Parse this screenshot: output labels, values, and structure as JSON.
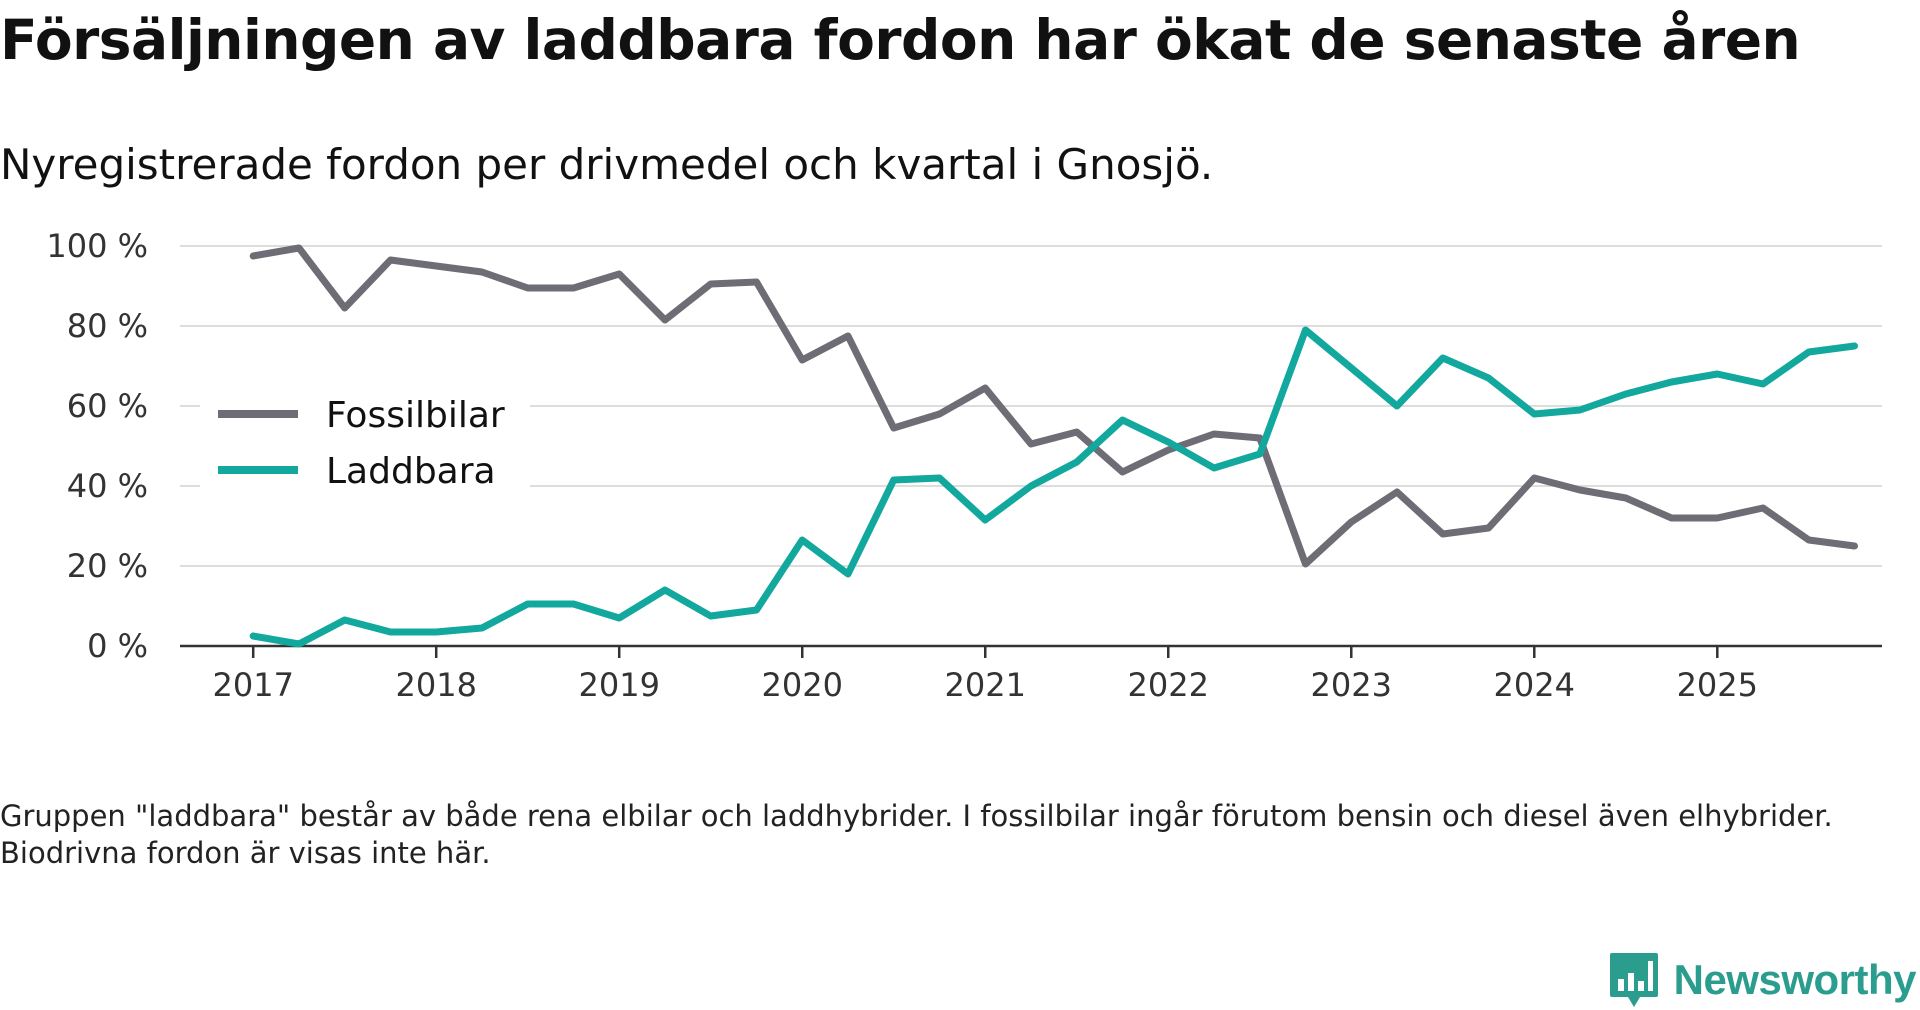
{
  "title": "Försäljningen av laddbara fordon har ökat de senaste åren",
  "subtitle": "Nyregistrerade fordon per drivmedel och kvartal i Gnosjö.",
  "footnote": "Gruppen \"laddbara\" består av både rena elbilar och laddhybrider. I fossilbilar ingår förutom bensin och diesel även elhybrider. Biodrivna fordon är visas inte här.",
  "brand": {
    "name": "Newsworthy",
    "logo_icon": "bar-chart-speech-bubble-icon"
  },
  "colors": {
    "fossil": "#6e6c75",
    "laddbara": "#12a89d",
    "grid": "#dddddd",
    "axis": "#333333"
  },
  "chart_data": {
    "type": "line",
    "title": "Försäljningen av laddbara fordon har ökat de senaste åren",
    "subtitle": "Nyregistrerade fordon per drivmedel och kvartal i Gnosjö.",
    "xlabel": "",
    "ylabel": "",
    "ylim": [
      0,
      100
    ],
    "y_ticks": [
      0,
      20,
      40,
      60,
      80,
      100
    ],
    "y_tick_labels": [
      "0 %",
      "20 %",
      "40 %",
      "60 %",
      "80 %",
      "100 %"
    ],
    "x_ticks": [
      2017,
      2018,
      2019,
      2020,
      2021,
      2022,
      2023,
      2024,
      2025
    ],
    "x_tick_labels": [
      "2017",
      "2018",
      "2019",
      "2020",
      "2021",
      "2022",
      "2023",
      "2024",
      "2025"
    ],
    "x_range": [
      2016.6,
      2025.9
    ],
    "grid": true,
    "legend_position": "left-middle",
    "x": [
      2017.0,
      2017.25,
      2017.5,
      2017.75,
      2018.0,
      2018.25,
      2018.5,
      2018.75,
      2019.0,
      2019.25,
      2019.5,
      2019.75,
      2020.0,
      2020.25,
      2020.5,
      2020.75,
      2021.0,
      2021.25,
      2021.5,
      2021.75,
      2022.0,
      2022.25,
      2022.5,
      2022.75,
      2023.0,
      2023.25,
      2023.5,
      2023.75,
      2024.0,
      2024.25,
      2024.5,
      2024.75,
      2025.0,
      2025.25,
      2025.5,
      2025.75
    ],
    "series": [
      {
        "name": "Fossilbilar",
        "color": "#6e6c75",
        "values": [
          97.5,
          99.5,
          84.5,
          96.5,
          95,
          93.5,
          89.5,
          89.5,
          93,
          81.5,
          90.5,
          91,
          71.5,
          77.5,
          54.5,
          58,
          64.5,
          50.5,
          53.5,
          43.5,
          49,
          53,
          52,
          20.5,
          31,
          38.5,
          28,
          29.5,
          42,
          39,
          37,
          32,
          32,
          34.5,
          26.5,
          25
        ]
      },
      {
        "name": "Laddbara",
        "color": "#12a89d",
        "values": [
          2.5,
          0.5,
          6.5,
          3.5,
          3.5,
          4.5,
          10.5,
          10.5,
          7,
          14,
          7.5,
          9,
          26.5,
          18,
          41.5,
          42,
          31.5,
          40,
          46,
          56.5,
          51,
          44.5,
          48,
          79,
          69.5,
          60,
          72,
          67,
          58,
          59,
          63,
          66,
          68,
          65.5,
          73.5,
          75
        ]
      }
    ]
  }
}
